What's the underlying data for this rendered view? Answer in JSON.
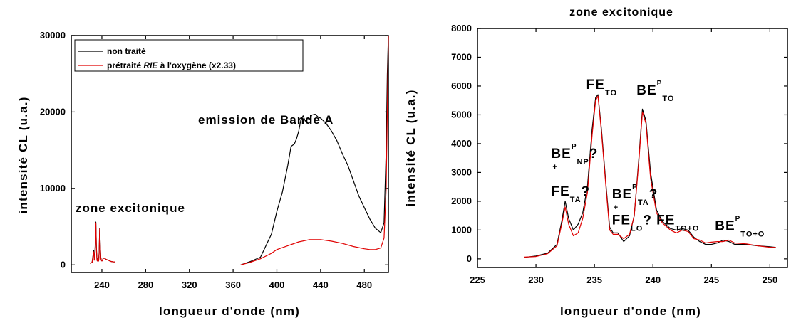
{
  "chart_data": [
    {
      "type": "line",
      "title": "",
      "xlabel": "longueur d'onde (nm)",
      "ylabel": "intensité CL (u.a.)",
      "xlim": [
        212,
        502
      ],
      "ylim": [
        -1000,
        30000
      ],
      "xticks": [
        240,
        280,
        320,
        360,
        400,
        440,
        480
      ],
      "yticks": [
        0,
        10000,
        20000,
        30000
      ],
      "legend_position": "top-left",
      "series": [
        {
          "name": "non traité",
          "color": "#000000",
          "x": [
            229,
            231,
            232.5,
            233,
            233.5,
            234,
            234.5,
            235,
            235.5,
            236,
            236.5,
            237,
            237.5,
            238,
            238.5,
            239,
            239.5,
            240,
            240.5,
            241,
            242,
            244,
            246,
            248,
            250,
            252,
            367,
            375,
            385,
            395,
            400,
            405,
            410,
            413,
            416,
            418,
            420,
            422,
            424,
            426,
            428,
            430,
            432,
            435,
            438,
            440,
            445,
            450,
            455,
            460,
            465,
            470,
            475,
            480,
            485,
            490,
            495,
            498,
            500,
            501,
            502
          ],
          "y": [
            200,
            300,
            1900,
            700,
            1200,
            3000,
            5600,
            2200,
            600,
            500,
            1000,
            500,
            1600,
            4800,
            2500,
            1000,
            600,
            500,
            600,
            800,
            900,
            700,
            600,
            450,
            400,
            380,
            0,
            400,
            1000,
            4000,
            7000,
            9500,
            13000,
            15500,
            15800,
            16500,
            17500,
            19000,
            19500,
            18800,
            19200,
            19000,
            19600,
            19700,
            19300,
            19200,
            18500,
            17500,
            16200,
            14500,
            13000,
            11000,
            9000,
            7500,
            6000,
            4800,
            4200,
            5500,
            15000,
            25000,
            30000
          ]
        },
        {
          "name": "prétraité RIE à l'oxygène (x2.33)",
          "color": "#e00000",
          "x": [
            229,
            231,
            232.5,
            233,
            233.5,
            234,
            234.5,
            235,
            235.5,
            236,
            236.5,
            237,
            237.5,
            238,
            238.5,
            239,
            239.5,
            240,
            240.5,
            241,
            242,
            244,
            246,
            248,
            250,
            252,
            367,
            375,
            385,
            395,
            400,
            410,
            420,
            430,
            440,
            450,
            460,
            470,
            480,
            485,
            490,
            495,
            498,
            500,
            501,
            502
          ],
          "y": [
            200,
            300,
            1700,
            600,
            1100,
            2900,
            5500,
            2000,
            600,
            500,
            900,
            500,
            1500,
            4700,
            2400,
            900,
            600,
            500,
            600,
            800,
            900,
            700,
            600,
            450,
            400,
            380,
            0,
            300,
            800,
            1500,
            2000,
            2500,
            3000,
            3300,
            3300,
            3100,
            2800,
            2400,
            2100,
            2000,
            2000,
            2200,
            3500,
            10000,
            20000,
            30000
          ]
        }
      ],
      "annotations": [
        {
          "text": "emission de Bande A",
          "x": 450,
          "y": 21000
        },
        {
          "text": "zone excitonique",
          "x": 256,
          "y": 7000
        }
      ]
    },
    {
      "type": "line",
      "title": "zone excitonique",
      "xlabel": "longueur d'onde (nm)",
      "ylabel": "intensité CL (u.a.)",
      "xlim": [
        225,
        251.5
      ],
      "ylim": [
        -300,
        8000
      ],
      "xticks": [
        225,
        230,
        235,
        240,
        245,
        250
      ],
      "yticks": [
        0,
        1000,
        2000,
        3000,
        4000,
        5000,
        6000,
        7000,
        8000
      ],
      "series": [
        {
          "name": "non traité",
          "color": "#000000",
          "x": [
            229,
            230,
            231,
            231.8,
            232.2,
            232.5,
            232.8,
            233.2,
            233.6,
            234,
            234.4,
            234.8,
            235.1,
            235.3,
            235.6,
            236,
            236.3,
            236.6,
            237,
            237.5,
            238,
            238.4,
            238.8,
            239.1,
            239.4,
            239.8,
            240.3,
            240.8,
            241.5,
            242,
            242.5,
            243,
            243.5,
            244,
            244.5,
            245,
            245.5,
            246,
            246.5,
            247,
            248,
            249,
            250,
            250.5
          ],
          "y": [
            50,
            100,
            200,
            500,
            1300,
            2000,
            1400,
            1000,
            1200,
            1600,
            2500,
            4500,
            5600,
            5700,
            4500,
            2500,
            1100,
            900,
            900,
            600,
            800,
            1500,
            3500,
            5200,
            4800,
            3000,
            1700,
            1300,
            1050,
            1000,
            1050,
            1000,
            750,
            600,
            500,
            500,
            550,
            650,
            600,
            500,
            500,
            450,
            420,
            400
          ]
        },
        {
          "name": "prétraité RIE à l'oxygène (x2.33)",
          "color": "#e00000",
          "x": [
            229,
            230,
            231,
            231.8,
            232.2,
            232.5,
            232.8,
            233.2,
            233.6,
            234,
            234.4,
            234.8,
            235.1,
            235.3,
            235.6,
            236,
            236.3,
            236.6,
            237,
            237.5,
            238,
            238.4,
            238.8,
            239.1,
            239.4,
            239.8,
            240.3,
            240.8,
            241.5,
            242,
            242.5,
            243,
            243.5,
            244,
            244.5,
            245,
            245.5,
            246,
            246.5,
            247,
            248,
            249,
            250,
            250.5
          ],
          "y": [
            60,
            80,
            180,
            450,
            1200,
            1800,
            1200,
            800,
            900,
            1400,
            2300,
            4300,
            5500,
            5650,
            4400,
            2400,
            1000,
            850,
            850,
            700,
            850,
            1500,
            3400,
            5100,
            4700,
            2800,
            1600,
            1250,
            1000,
            900,
            1000,
            950,
            700,
            650,
            550,
            580,
            600,
            600,
            650,
            550,
            520,
            450,
            400,
            400
          ]
        }
      ],
      "annotations": [
        {
          "text": "FE",
          "sub": "TO",
          "x": 234.3,
          "y": 5900
        },
        {
          "text": "BE",
          "sup": "P",
          "sub": "TO",
          "x": 238.6,
          "y": 5700
        },
        {
          "text": "BE",
          "sup": "P",
          "sub": "NP",
          "pre": "+",
          "tail": "?",
          "x": 231.3,
          "y": 3500
        },
        {
          "text": "FE",
          "sub": "TA",
          "tail": "?",
          "x": 231.3,
          "y": 2200
        },
        {
          "text": "BE",
          "sup": "P",
          "sub": "TA",
          "pre": "+",
          "tail": "?",
          "x": 236.5,
          "y": 2100
        },
        {
          "text": "FE",
          "sub": "LO",
          "tail": "?",
          "x": 236.5,
          "y": 1200
        },
        {
          "text": "FE",
          "sub": "TO+O",
          "x": 240.3,
          "y": 1200
        },
        {
          "text": "BE",
          "sup": "P",
          "sub": "TO+O",
          "x": 245.3,
          "y": 1000
        }
      ]
    }
  ]
}
